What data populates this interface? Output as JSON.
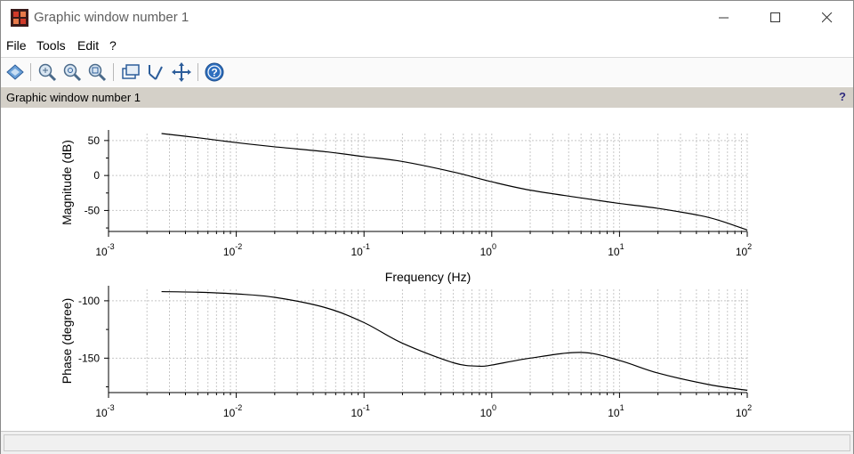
{
  "window": {
    "title": "Graphic window number 1"
  },
  "menu": [
    "File",
    "Tools",
    "Edit",
    "?"
  ],
  "toolbar_icons": [
    "rotate-icon",
    "zoom-icon",
    "zoom-reset-icon",
    "zoom-area-icon",
    "datatip-icon",
    "edit-axes-icon",
    "pan-icon",
    "help-icon"
  ],
  "infobar": {
    "text": "Graphic window number 1",
    "help": "?"
  },
  "colors": {
    "curve": "#000000",
    "grid": "#c8c8c8",
    "infobar": "#d4d0c8"
  },
  "chart_data": [
    {
      "type": "line",
      "title": "",
      "xlabel": "Frequency (Hz)",
      "ylabel": "Magnitude (dB)",
      "xscale": "log",
      "xlim": [
        0.001,
        100
      ],
      "ylim": [
        -80,
        60
      ],
      "x_ticks": [
        0.001,
        0.01,
        0.1,
        1,
        10,
        100
      ],
      "x_tick_labels": [
        {
          "b": "10",
          "e": "-3"
        },
        {
          "b": "10",
          "e": "-2"
        },
        {
          "b": "10",
          "e": "-1"
        },
        {
          "b": "10",
          "e": "0"
        },
        {
          "b": "10",
          "e": "1"
        },
        {
          "b": "10",
          "e": "2"
        }
      ],
      "y_ticks": [
        50,
        0,
        -50
      ],
      "y_tick_labels": [
        "50",
        "0",
        "-50"
      ],
      "grid": true,
      "series": [
        {
          "x": [
            0.0026,
            0.005,
            0.01,
            0.02,
            0.05,
            0.1,
            0.2,
            0.5,
            1,
            2,
            5,
            10,
            20,
            50,
            100
          ],
          "values": [
            60,
            54,
            47,
            41,
            34,
            27,
            20,
            5,
            -9,
            -21,
            -32,
            -40,
            -47,
            -60,
            -78
          ]
        }
      ]
    },
    {
      "type": "line",
      "title": "",
      "xlabel": "",
      "ylabel": "Phase (degree)",
      "xscale": "log",
      "xlim": [
        0.001,
        100
      ],
      "ylim": [
        -180,
        -90
      ],
      "x_ticks": [
        0.001,
        0.01,
        0.1,
        1,
        10,
        100
      ],
      "x_tick_labels": [
        {
          "b": "10",
          "e": "-3"
        },
        {
          "b": "10",
          "e": "-2"
        },
        {
          "b": "10",
          "e": "-1"
        },
        {
          "b": "10",
          "e": "0"
        },
        {
          "b": "10",
          "e": "1"
        },
        {
          "b": "10",
          "e": "2"
        }
      ],
      "y_ticks": [
        -100,
        -150
      ],
      "y_tick_labels": [
        "-100",
        "-150"
      ],
      "grid": true,
      "series": [
        {
          "x": [
            0.0026,
            0.005,
            0.01,
            0.02,
            0.05,
            0.1,
            0.2,
            0.5,
            0.8,
            1,
            2,
            5,
            10,
            20,
            50,
            100
          ],
          "values": [
            -92,
            -92.5,
            -94,
            -97,
            -106,
            -119,
            -137,
            -154,
            -157,
            -156,
            -150,
            -145,
            -152,
            -163,
            -173,
            -178
          ]
        }
      ]
    }
  ]
}
